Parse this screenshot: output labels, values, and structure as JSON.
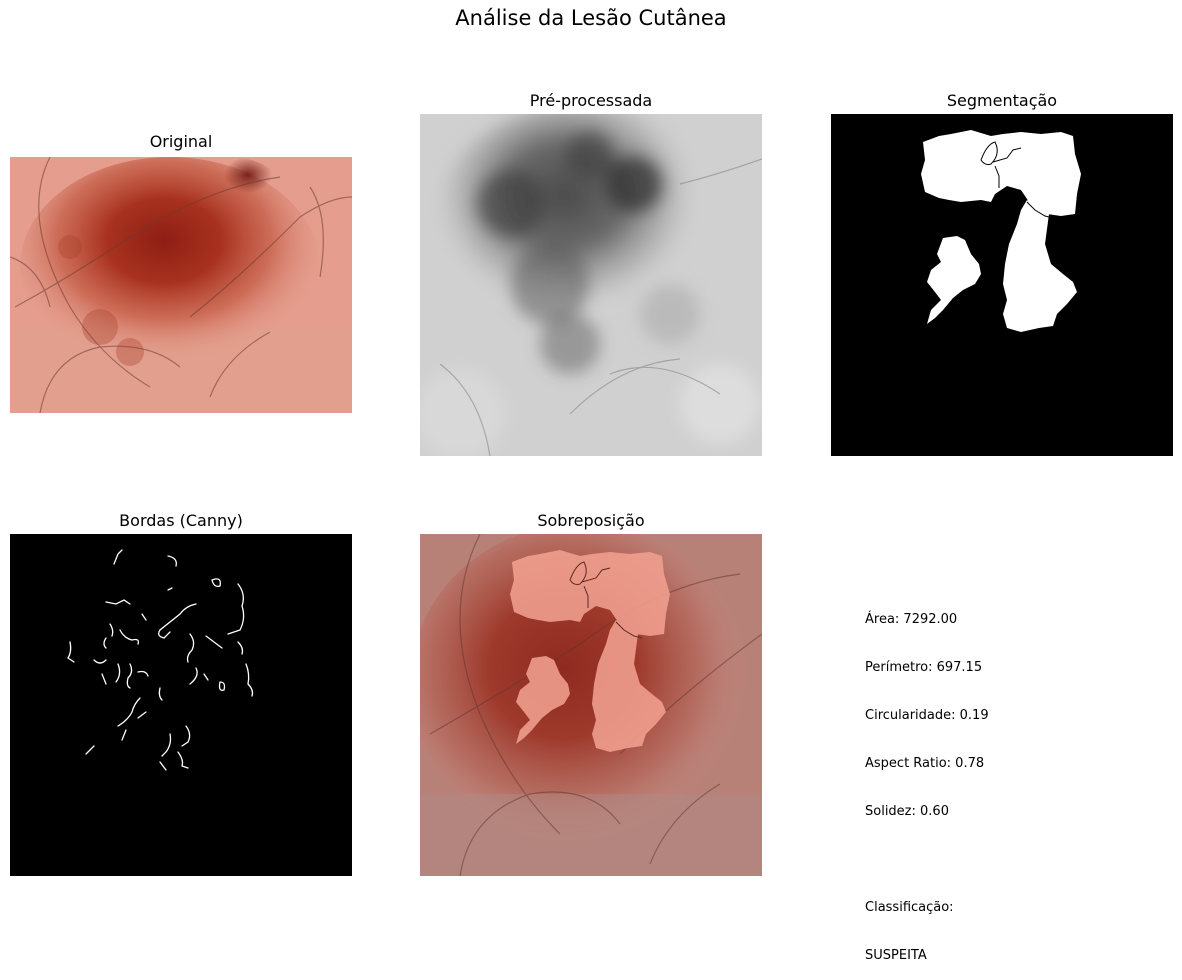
{
  "figure_title": "Análise da Lesão Cutânea",
  "panels": {
    "original": {
      "title": "Original"
    },
    "preprocessed": {
      "title": "Pré-processada"
    },
    "segmentation": {
      "title": "Segmentação"
    },
    "edges": {
      "title": "Bordas (Canny)"
    },
    "overlay": {
      "title": "Sobreposição"
    }
  },
  "metrics": {
    "area": "Área: 7292.00",
    "perimeter": "Perímetro: 697.15",
    "circularity": "Circularidade: 0.19",
    "aspect_ratio": "Aspect Ratio: 0.78",
    "solidity": "Solidez: 0.60",
    "classification_label": "Classificação:",
    "classification_value": "SUSPEITA"
  },
  "colors": {
    "skin": "#e49a8a",
    "lesion": "#9e2a1e",
    "mask": "#ffffff",
    "background": "#000000",
    "overlay_tint": "#f2a090"
  }
}
